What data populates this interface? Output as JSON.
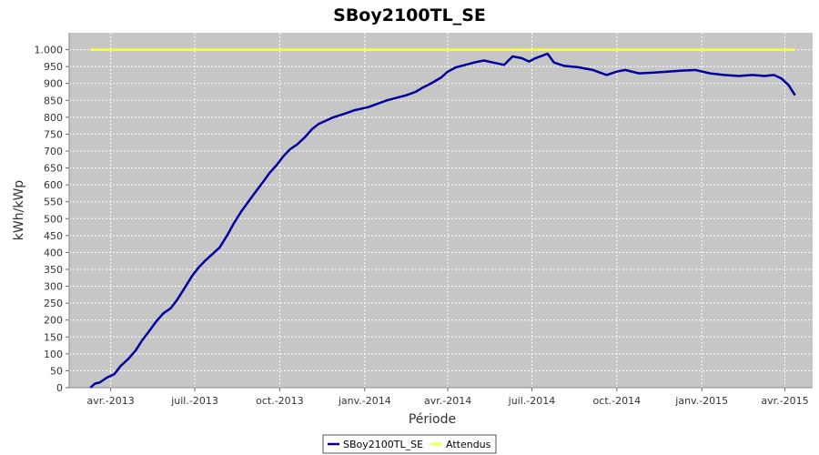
{
  "chart_data": {
    "type": "line",
    "title": "SBoy2100TL_SE",
    "xlabel": "Période",
    "ylabel": "kWh/kWp",
    "ylim": [
      0,
      1050
    ],
    "y_ticks": [
      0,
      50,
      100,
      150,
      200,
      250,
      300,
      350,
      400,
      450,
      500,
      550,
      600,
      650,
      700,
      750,
      800,
      850,
      900,
      950,
      1000
    ],
    "y_tick_labels": [
      "0",
      "50",
      "100",
      "150",
      "200",
      "250",
      "300",
      "350",
      "400",
      "450",
      "500",
      "550",
      "600",
      "650",
      "700",
      "750",
      "800",
      "850",
      "900",
      "950",
      "1.000"
    ],
    "x_range": [
      "2013-02-15",
      "2015-05-01"
    ],
    "x_ticks": [
      {
        "date": "2013-04-01",
        "label": "avr.-2013"
      },
      {
        "date": "2013-07-01",
        "label": "juil.-2013"
      },
      {
        "date": "2013-10-01",
        "label": "oct.-2013"
      },
      {
        "date": "2014-01-01",
        "label": "janv.-2014"
      },
      {
        "date": "2014-04-01",
        "label": "avr.-2014"
      },
      {
        "date": "2014-07-01",
        "label": "juil.-2014"
      },
      {
        "date": "2014-10-01",
        "label": "oct.-2014"
      },
      {
        "date": "2015-01-01",
        "label": "janv.-2015"
      },
      {
        "date": "2015-04-01",
        "label": "avr.-2015"
      }
    ],
    "grid": true,
    "legend_position": "bottom",
    "series": [
      {
        "name": "SBoy2100TL_SE",
        "color": "#0000a0",
        "points": [
          [
            "2013-03-10",
            0
          ],
          [
            "2013-03-15",
            12
          ],
          [
            "2013-03-20",
            15
          ],
          [
            "2013-03-28",
            30
          ],
          [
            "2013-04-05",
            40
          ],
          [
            "2013-04-12",
            65
          ],
          [
            "2013-04-20",
            85
          ],
          [
            "2013-04-28",
            110
          ],
          [
            "2013-05-05",
            140
          ],
          [
            "2013-05-12",
            165
          ],
          [
            "2013-05-20",
            195
          ],
          [
            "2013-05-28",
            220
          ],
          [
            "2013-06-05",
            235
          ],
          [
            "2013-06-12",
            260
          ],
          [
            "2013-06-20",
            295
          ],
          [
            "2013-06-28",
            330
          ],
          [
            "2013-07-05",
            355
          ],
          [
            "2013-07-12",
            375
          ],
          [
            "2013-07-20",
            395
          ],
          [
            "2013-07-28",
            415
          ],
          [
            "2013-08-05",
            450
          ],
          [
            "2013-08-12",
            485
          ],
          [
            "2013-08-20",
            520
          ],
          [
            "2013-08-28",
            550
          ],
          [
            "2013-09-05",
            580
          ],
          [
            "2013-09-12",
            605
          ],
          [
            "2013-09-20",
            635
          ],
          [
            "2013-09-28",
            660
          ],
          [
            "2013-10-05",
            685
          ],
          [
            "2013-10-12",
            705
          ],
          [
            "2013-10-20",
            720
          ],
          [
            "2013-10-28",
            740
          ],
          [
            "2013-11-05",
            765
          ],
          [
            "2013-11-12",
            780
          ],
          [
            "2013-11-20",
            790
          ],
          [
            "2013-11-28",
            800
          ],
          [
            "2013-12-10",
            810
          ],
          [
            "2013-12-20",
            820
          ],
          [
            "2014-01-05",
            830
          ],
          [
            "2014-01-15",
            840
          ],
          [
            "2014-01-25",
            850
          ],
          [
            "2014-02-05",
            858
          ],
          [
            "2014-02-15",
            865
          ],
          [
            "2014-02-25",
            875
          ],
          [
            "2014-03-05",
            888
          ],
          [
            "2014-03-15",
            902
          ],
          [
            "2014-03-25",
            918
          ],
          [
            "2014-04-01",
            935
          ],
          [
            "2014-04-10",
            948
          ],
          [
            "2014-04-20",
            955
          ],
          [
            "2014-05-01",
            963
          ],
          [
            "2014-05-10",
            968
          ],
          [
            "2014-05-20",
            962
          ],
          [
            "2014-06-01",
            955
          ],
          [
            "2014-06-10",
            980
          ],
          [
            "2014-06-20",
            975
          ],
          [
            "2014-06-28",
            965
          ],
          [
            "2014-07-05",
            975
          ],
          [
            "2014-07-12",
            982
          ],
          [
            "2014-07-18",
            988
          ],
          [
            "2014-07-25",
            962
          ],
          [
            "2014-08-05",
            952
          ],
          [
            "2014-08-20",
            948
          ],
          [
            "2014-09-05",
            940
          ],
          [
            "2014-09-20",
            925
          ],
          [
            "2014-10-01",
            935
          ],
          [
            "2014-10-10",
            940
          ],
          [
            "2014-10-25",
            930
          ],
          [
            "2014-11-10",
            932
          ],
          [
            "2014-11-25",
            935
          ],
          [
            "2014-12-10",
            938
          ],
          [
            "2014-12-25",
            940
          ],
          [
            "2015-01-10",
            930
          ],
          [
            "2015-01-25",
            925
          ],
          [
            "2015-02-10",
            922
          ],
          [
            "2015-02-25",
            925
          ],
          [
            "2015-03-10",
            922
          ],
          [
            "2015-03-20",
            925
          ],
          [
            "2015-03-28",
            915
          ],
          [
            "2015-04-05",
            895
          ],
          [
            "2015-04-12",
            865
          ]
        ]
      },
      {
        "name": "Attendus",
        "color": "#ffff33",
        "points": [
          [
            "2013-03-10",
            1000
          ],
          [
            "2015-04-12",
            1000
          ]
        ]
      }
    ]
  }
}
